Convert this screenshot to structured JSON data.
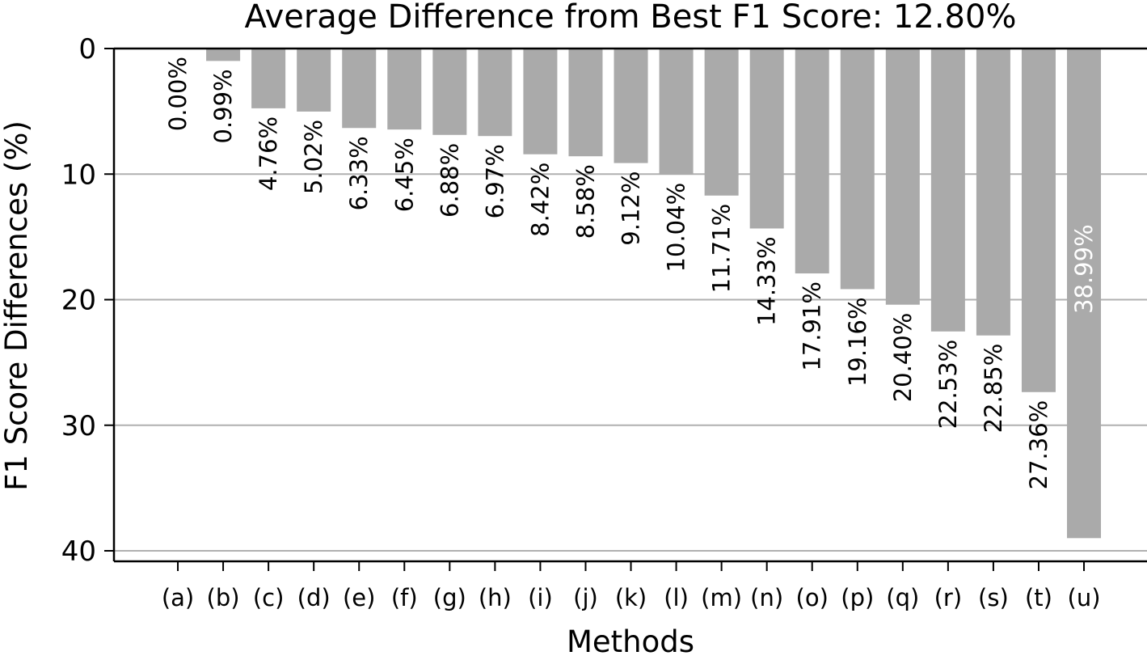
{
  "chart_data": {
    "type": "bar",
    "title": "Average Difference from Best F1 Score: 12.80%",
    "xlabel": "Methods",
    "ylabel": "F1 Score Differences (%)",
    "ylim": [
      0,
      40
    ],
    "y_inverted": true,
    "yticks": [
      0,
      10,
      20,
      30,
      40
    ],
    "grid": "y",
    "bar_color": "#aaaaaa",
    "grid_color": "#b0b0b0",
    "categories": [
      "(a)",
      "(b)",
      "(c)",
      "(d)",
      "(e)",
      "(f)",
      "(g)",
      "(h)",
      "(i)",
      "(j)",
      "(k)",
      "(l)",
      "(m)",
      "(n)",
      "(o)",
      "(p)",
      "(q)",
      "(r)",
      "(s)",
      "(t)",
      "(u)"
    ],
    "values": [
      0.0,
      0.99,
      4.76,
      5.02,
      6.33,
      6.45,
      6.88,
      6.97,
      8.42,
      8.58,
      9.12,
      10.04,
      11.71,
      14.33,
      17.91,
      19.16,
      20.4,
      22.53,
      22.85,
      27.36,
      38.99
    ],
    "value_labels": [
      "0.00%",
      "0.99%",
      "4.76%",
      "5.02%",
      "6.33%",
      "6.45%",
      "6.88%",
      "6.97%",
      "8.42%",
      "8.58%",
      "9.12%",
      "10.04%",
      "11.71%",
      "14.33%",
      "17.91%",
      "19.16%",
      "20.40%",
      "22.53%",
      "22.85%",
      "27.36%",
      "38.99%"
    ]
  }
}
